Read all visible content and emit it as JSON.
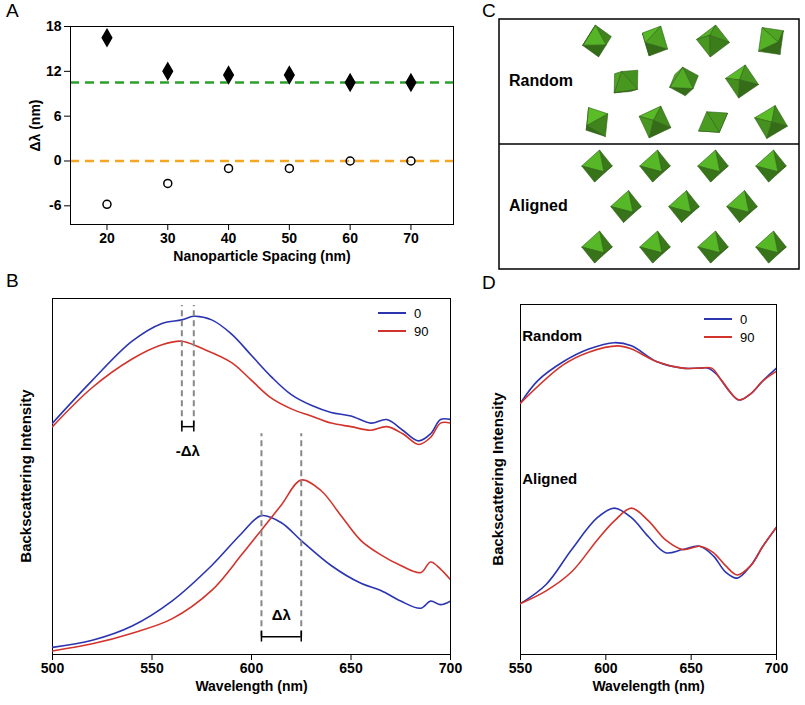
{
  "chart_data": [
    {
      "panel": "A",
      "type": "scatter",
      "x_label": "Nanoparticle Spacing (nm)",
      "y_label": "Δλ (nm)",
      "x": [
        20,
        30,
        40,
        50,
        60,
        70
      ],
      "series": [
        {
          "marker": "diamond",
          "color": "#000000",
          "values": [
            16.5,
            12,
            11.5,
            11.5,
            10.5,
            10.5
          ]
        },
        {
          "marker": "open-circle",
          "color": "#000000",
          "values": [
            -5.8,
            -3,
            -1,
            -1,
            0,
            0
          ]
        }
      ],
      "reference_lines": [
        {
          "y": 10.5,
          "color": "#2ca02c",
          "line_style": "dashed"
        },
        {
          "y": 0,
          "color": "#f5a623",
          "line_style": "dashed"
        }
      ],
      "xlim": [
        14,
        77
      ],
      "xticks": [
        20,
        30,
        40,
        50,
        60,
        70
      ],
      "ylim": [
        -8.5,
        18
      ],
      "yticks": [
        -6,
        0,
        6,
        12,
        18
      ]
    },
    {
      "panel": "B",
      "type": "line",
      "x_label": "Wavelength (nm)",
      "y_label": "Backscattering Intensity",
      "tick_labels": "x",
      "legend": "top-right",
      "series": [
        {
          "name": "0",
          "color": "#2b35b0",
          "x": [
            500,
            520,
            540,
            555,
            565,
            571,
            580,
            590,
            600,
            610,
            620,
            630,
            640,
            650,
            660,
            668,
            676,
            684,
            690,
            695,
            700
          ],
          "values": [
            65,
            77,
            88,
            93,
            94,
            95,
            94,
            90,
            84,
            78,
            73,
            70,
            68,
            67,
            65,
            66,
            63,
            60,
            62,
            66,
            66
          ]
        },
        {
          "name": "90",
          "color": "#d2342c",
          "x": [
            500,
            520,
            540,
            555,
            565,
            575,
            590,
            600,
            610,
            620,
            630,
            640,
            650,
            660,
            668,
            676,
            684,
            690,
            695,
            700
          ],
          "values": [
            64,
            75,
            83,
            87,
            88,
            86,
            82,
            77,
            72,
            69,
            67,
            65,
            64,
            63,
            64,
            62,
            59,
            61,
            65,
            65
          ]
        },
        {
          "name": "0",
          "color": "#2b35b0",
          "x": [
            500,
            520,
            540,
            560,
            580,
            595,
            605,
            615,
            625,
            640,
            655,
            665,
            675,
            685,
            690,
            695,
            700
          ],
          "values": [
            2,
            4,
            8,
            15,
            25,
            34,
            39,
            37,
            32,
            25,
            20,
            18,
            15,
            13,
            15,
            14,
            15
          ]
        },
        {
          "name": "90",
          "color": "#d2342c",
          "x": [
            500,
            520,
            540,
            560,
            580,
            595,
            605,
            615,
            625,
            635,
            645,
            655,
            665,
            675,
            685,
            690,
            695,
            700
          ],
          "values": [
            1,
            3,
            6,
            10,
            18,
            28,
            35,
            42,
            49,
            46,
            39,
            32,
            28,
            25,
            23,
            26,
            24,
            21
          ]
        }
      ],
      "annotations": [
        {
          "text": "-Δλ",
          "x1": 565,
          "x2": 571,
          "y": 64,
          "y_top": 98,
          "label_y": 57
        },
        {
          "text": "Δλ",
          "x1": 605,
          "x2": 625,
          "y": 5,
          "y_top": 62,
          "label_y": 11
        }
      ],
      "xlim": [
        500,
        700
      ],
      "xticks": [
        500,
        550,
        600,
        650,
        700
      ],
      "ylim": [
        0,
        100
      ]
    },
    {
      "panel": "D",
      "type": "line",
      "x_label": "Wavelength (nm)",
      "y_label": "Backscattering Intensity",
      "tick_labels": "x",
      "legend": "top-right",
      "series": [
        {
          "name": "0",
          "color": "#2b35b0",
          "x": [
            550,
            560,
            575,
            590,
            605,
            615,
            630,
            645,
            655,
            660,
            665,
            672,
            678,
            685,
            692,
            700
          ],
          "values": [
            79,
            86,
            92,
            96,
            98,
            97,
            92,
            90,
            90,
            90,
            88,
            83,
            80,
            82,
            86,
            90
          ]
        },
        {
          "name": "90",
          "color": "#d2342c",
          "x": [
            550,
            575,
            590,
            607,
            615,
            630,
            645,
            655,
            662,
            668,
            678,
            685,
            692,
            700
          ],
          "values": [
            79,
            91,
            95,
            97,
            96,
            92,
            90,
            90,
            90,
            86,
            80,
            82,
            86,
            89
          ]
        },
        {
          "name": "0",
          "color": "#2b35b0",
          "x": [
            550,
            565,
            580,
            595,
            605,
            615,
            625,
            635,
            645,
            655,
            663,
            670,
            677,
            685,
            692,
            700
          ],
          "values": [
            16,
            22,
            33,
            43,
            46,
            43,
            37,
            32,
            33,
            34,
            31,
            26,
            24,
            28,
            34,
            40
          ]
        },
        {
          "name": "90",
          "color": "#d2342c",
          "x": [
            550,
            565,
            580,
            595,
            605,
            615,
            625,
            635,
            645,
            655,
            663,
            670,
            677,
            685,
            692,
            700
          ],
          "values": [
            16,
            20,
            26,
            36,
            42,
            46,
            42,
            36,
            33,
            34,
            32,
            28,
            25,
            28,
            34,
            40
          ]
        }
      ],
      "annotations": [
        {
          "text": "Random",
          "x": 551,
          "y": 100
        },
        {
          "text": "Aligned",
          "x": 551,
          "y": 55
        }
      ],
      "xlim": [
        550,
        700
      ],
      "xticks": [
        550,
        600,
        650,
        700
      ],
      "ylim": [
        0,
        110
      ]
    }
  ],
  "diagram": {
    "panel": "C",
    "rows": [
      {
        "label": "Random",
        "arrangement": "random",
        "count": 11
      },
      {
        "label": "Aligned",
        "arrangement": "aligned",
        "count": 11
      }
    ]
  }
}
